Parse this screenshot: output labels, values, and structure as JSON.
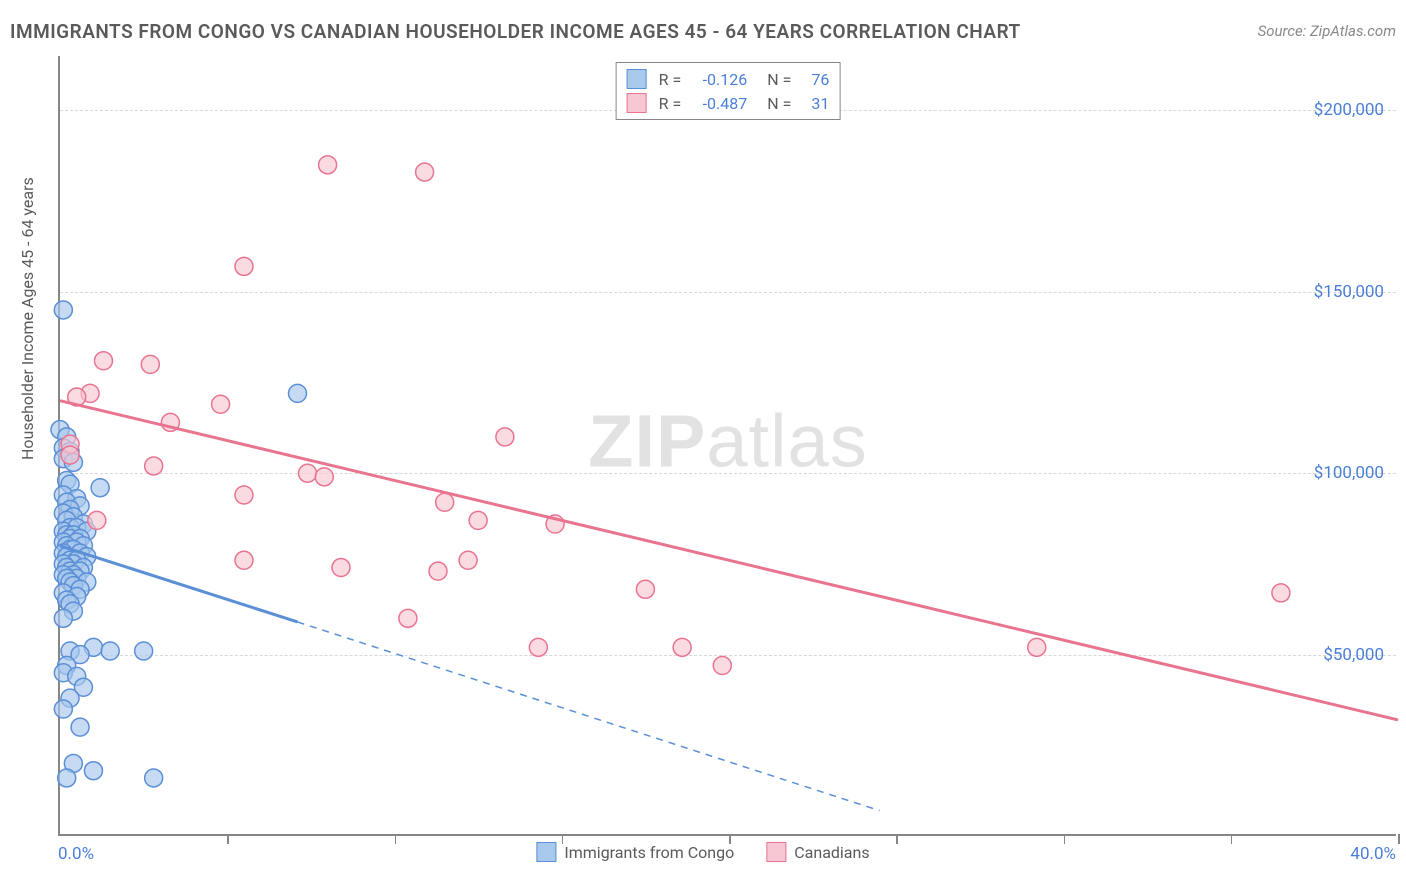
{
  "title": "IMMIGRANTS FROM CONGO VS CANADIAN HOUSEHOLDER INCOME AGES 45 - 64 YEARS CORRELATION CHART",
  "source": "Source: ZipAtlas.com",
  "ylabel": "Householder Income Ages 45 - 64 years",
  "watermark_a": "ZIP",
  "watermark_b": "atlas",
  "chart": {
    "type": "scatter",
    "xlim": [
      0,
      40
    ],
    "ylim": [
      0,
      215000
    ],
    "x_left_label": "0.0%",
    "x_right_label": "40.0%",
    "y_ticks": [
      50000,
      100000,
      150000,
      200000
    ],
    "y_tick_labels": [
      "$50,000",
      "$100,000",
      "$150,000",
      "$200,000"
    ],
    "x_tick_positions": [
      0,
      5,
      10,
      15,
      20,
      25,
      30,
      35,
      40
    ],
    "grid_color": "#d8d8d8",
    "axis_color": "#868686",
    "background_color": "#ffffff",
    "label_color": "#4a7fd8",
    "series": [
      {
        "name": "Immigrants from Congo",
        "color_fill": "#a8c8ec",
        "color_stroke": "#5b8fd6",
        "r_value": "-0.126",
        "n_value": "76",
        "marker_radius": 9,
        "trend_solid": {
          "x1": 0,
          "y1": 80000,
          "x2": 7.1,
          "y2": 59000
        },
        "trend_dashed": {
          "x1": 7.1,
          "y1": 59000,
          "x2": 24.5,
          "y2": 7000
        },
        "points": [
          [
            0.1,
            145000
          ],
          [
            0.0,
            112000
          ],
          [
            0.2,
            110000
          ],
          [
            0.1,
            107000
          ],
          [
            0.3,
            106000
          ],
          [
            0.1,
            104000
          ],
          [
            0.4,
            103000
          ],
          [
            0.2,
            98000
          ],
          [
            0.3,
            97000
          ],
          [
            1.2,
            96000
          ],
          [
            0.1,
            94000
          ],
          [
            0.5,
            93000
          ],
          [
            0.2,
            92000
          ],
          [
            0.6,
            91000
          ],
          [
            0.3,
            90000
          ],
          [
            0.1,
            89000
          ],
          [
            0.4,
            88000
          ],
          [
            0.2,
            87000
          ],
          [
            0.7,
            86000
          ],
          [
            0.3,
            85000
          ],
          [
            0.5,
            85000
          ],
          [
            0.1,
            84000
          ],
          [
            0.8,
            84000
          ],
          [
            0.2,
            83000
          ],
          [
            0.4,
            83000
          ],
          [
            0.3,
            82000
          ],
          [
            0.6,
            82000
          ],
          [
            0.1,
            81000
          ],
          [
            0.5,
            81000
          ],
          [
            0.2,
            80000
          ],
          [
            0.7,
            80000
          ],
          [
            0.3,
            79000
          ],
          [
            0.4,
            79000
          ],
          [
            0.1,
            78000
          ],
          [
            0.6,
            78000
          ],
          [
            0.2,
            77000
          ],
          [
            0.8,
            77000
          ],
          [
            0.3,
            76000
          ],
          [
            0.5,
            76000
          ],
          [
            0.4,
            75000
          ],
          [
            0.1,
            75000
          ],
          [
            0.7,
            74000
          ],
          [
            0.2,
            74000
          ],
          [
            0.3,
            73000
          ],
          [
            0.6,
            73000
          ],
          [
            0.4,
            72000
          ],
          [
            0.1,
            72000
          ],
          [
            0.5,
            71000
          ],
          [
            0.2,
            71000
          ],
          [
            0.8,
            70000
          ],
          [
            0.3,
            70000
          ],
          [
            0.4,
            69000
          ],
          [
            0.6,
            68000
          ],
          [
            0.1,
            67000
          ],
          [
            0.5,
            66000
          ],
          [
            0.2,
            65000
          ],
          [
            0.3,
            64000
          ],
          [
            0.4,
            62000
          ],
          [
            0.1,
            60000
          ],
          [
            1.0,
            52000
          ],
          [
            0.3,
            51000
          ],
          [
            1.5,
            51000
          ],
          [
            0.6,
            50000
          ],
          [
            2.5,
            51000
          ],
          [
            0.2,
            47000
          ],
          [
            0.1,
            45000
          ],
          [
            0.5,
            44000
          ],
          [
            0.7,
            41000
          ],
          [
            0.3,
            38000
          ],
          [
            0.1,
            35000
          ],
          [
            0.4,
            20000
          ],
          [
            1.0,
            18000
          ],
          [
            0.2,
            16000
          ],
          [
            2.8,
            16000
          ],
          [
            7.1,
            122000
          ],
          [
            0.6,
            30000
          ]
        ]
      },
      {
        "name": "Canadians",
        "color_fill": "#f7c8d3",
        "color_stroke": "#e97490",
        "r_value": "-0.487",
        "n_value": "31",
        "marker_radius": 9,
        "trend_solid": {
          "x1": 0,
          "y1": 120000,
          "x2": 40,
          "y2": 32000
        },
        "points": [
          [
            8.0,
            185000
          ],
          [
            10.9,
            183000
          ],
          [
            5.5,
            157000
          ],
          [
            1.3,
            131000
          ],
          [
            2.7,
            130000
          ],
          [
            0.9,
            122000
          ],
          [
            0.5,
            121000
          ],
          [
            4.8,
            119000
          ],
          [
            3.3,
            114000
          ],
          [
            13.3,
            110000
          ],
          [
            0.3,
            108000
          ],
          [
            2.8,
            102000
          ],
          [
            7.4,
            100000
          ],
          [
            7.9,
            99000
          ],
          [
            5.5,
            94000
          ],
          [
            11.5,
            92000
          ],
          [
            1.1,
            87000
          ],
          [
            12.5,
            87000
          ],
          [
            14.8,
            86000
          ],
          [
            5.5,
            76000
          ],
          [
            12.2,
            76000
          ],
          [
            8.4,
            74000
          ],
          [
            11.3,
            73000
          ],
          [
            17.5,
            68000
          ],
          [
            10.4,
            60000
          ],
          [
            18.6,
            52000
          ],
          [
            14.3,
            52000
          ],
          [
            19.8,
            47000
          ],
          [
            29.2,
            52000
          ],
          [
            36.5,
            67000
          ],
          [
            0.3,
            105000
          ]
        ]
      }
    ]
  },
  "legend_bottom": [
    {
      "label": "Immigrants from Congo",
      "fill": "#a8c8ec",
      "stroke": "#5b8fd6"
    },
    {
      "label": "Canadians",
      "fill": "#f7c8d3",
      "stroke": "#e97490"
    }
  ]
}
